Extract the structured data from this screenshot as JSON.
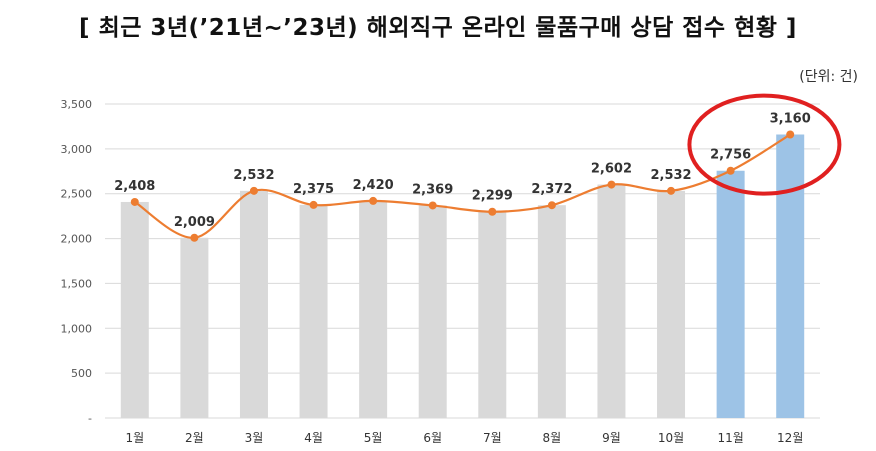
{
  "chart_data": {
    "type": "bar",
    "title": "[ 최근 3년(’21년~’23년) 해외직구 온라인 물품구매 상담 접수 현황 ]",
    "unit_label": "(단위: 건)",
    "categories": [
      "1월",
      "2월",
      "3월",
      "4월",
      "5월",
      "6월",
      "7월",
      "8월",
      "9월",
      "10월",
      "11월",
      "12월"
    ],
    "values": [
      2408,
      2009,
      2532,
      2375,
      2420,
      2369,
      2299,
      2372,
      2602,
      2532,
      2756,
      3160
    ],
    "data_labels": [
      "2,408",
      "2,009",
      "2,532",
      "2,375",
      "2,420",
      "2,369",
      "2,299",
      "2,372",
      "2,602",
      "2,532",
      "2,756",
      "3,160"
    ],
    "ylim": [
      0,
      3500
    ],
    "yticks": [
      0,
      500,
      1000,
      1500,
      2000,
      2500,
      3000,
      3500
    ],
    "ytick_labels": [
      "-",
      "500",
      "1,000",
      "1,500",
      "2,000",
      "2,500",
      "3,000",
      "3,500"
    ],
    "highlighted_categories": [
      "11월",
      "12월"
    ],
    "grid": true,
    "colors": {
      "bar": "#d9d9d9",
      "bar_highlight": "#9dc3e6",
      "line": "#ed7d31",
      "circle": "#e02020",
      "grid": "#d9d9d9"
    }
  }
}
